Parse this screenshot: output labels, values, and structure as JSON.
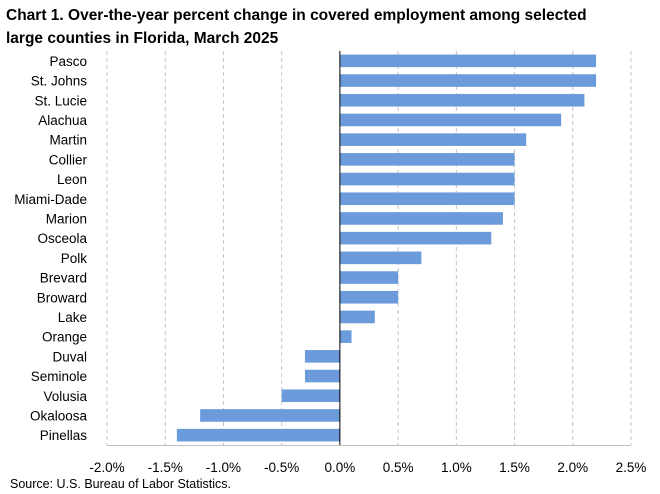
{
  "chart_data": {
    "type": "bar",
    "orientation": "horizontal",
    "title_line1": "Chart 1. Over-the-year percent change in covered employment among selected",
    "title_line2": "large counties in Florida,  March 2025",
    "source": "Source: U.S. Bureau of Labor Statistics.",
    "categories": [
      "Pasco",
      "St. Johns",
      "St. Lucie",
      "Alachua",
      "Martin",
      "Collier",
      "Leon",
      "Miami-Dade",
      "Marion",
      "Osceola",
      "Polk",
      "Brevard",
      "Broward",
      "Lake",
      "Orange",
      "Duval",
      "Seminole",
      "Volusia",
      "Okaloosa",
      "Pinellas"
    ],
    "values": [
      2.2,
      2.2,
      2.1,
      1.9,
      1.6,
      1.5,
      1.5,
      1.5,
      1.4,
      1.3,
      0.7,
      0.5,
      0.5,
      0.3,
      0.1,
      -0.3,
      -0.3,
      -0.5,
      -1.2,
      -1.4
    ],
    "xlim": [
      -2.0,
      2.5
    ],
    "xticks": [
      -2.0,
      -1.5,
      -1.0,
      -0.5,
      0.0,
      0.5,
      1.0,
      1.5,
      2.0,
      2.5
    ],
    "xtick_labels": [
      "-2.0%",
      "-1.5%",
      "-1.0%",
      "-0.5%",
      "0.0%",
      "0.5%",
      "1.0%",
      "1.5%",
      "2.0%",
      "2.5%"
    ],
    "xlabel": "",
    "ylabel": "",
    "grid": "vertical dashed",
    "legend": "none",
    "bar_color": "#6b9bdb",
    "grid_color": "#c4c4c4",
    "axis_color": "#000000"
  }
}
